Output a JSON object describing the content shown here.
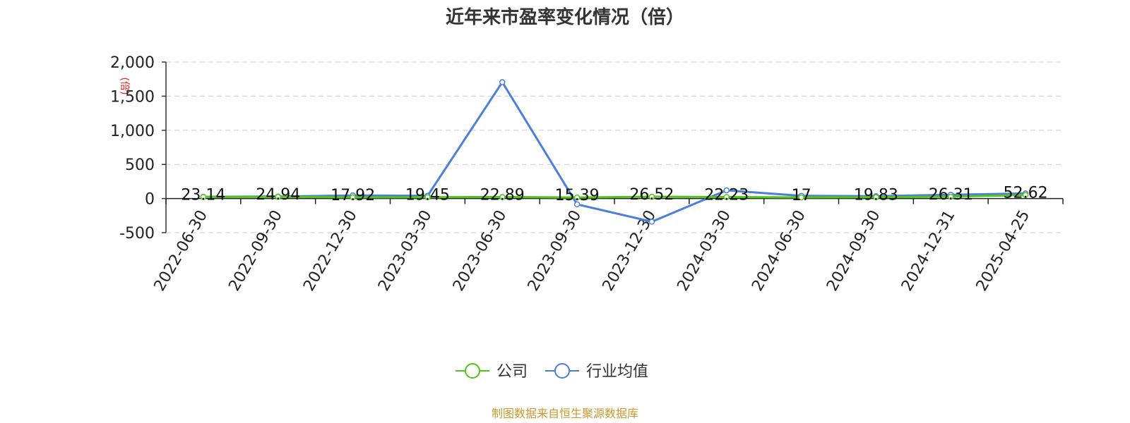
{
  "chart_data": {
    "type": "line",
    "title": "近年来市盈率变化情况（倍）",
    "ylabel": "(倍)",
    "ylim": [
      -500,
      2000
    ],
    "yticks": [
      2000,
      1500,
      1000,
      500,
      0,
      -500
    ],
    "ytick_labels": [
      "2,000",
      "1,500",
      "1,000",
      "500",
      "0",
      "-500"
    ],
    "grid": true,
    "categories": [
      "2022-06-30",
      "2022-09-30",
      "2022-12-30",
      "2023-03-30",
      "2023-06-30",
      "2023-09-30",
      "2023-12-30",
      "2024-03-30",
      "2024-06-30",
      "2024-09-30",
      "2024-12-31",
      "2025-04-25"
    ],
    "series": [
      {
        "name": "公司",
        "color": "#52c41a",
        "values": [
          23.14,
          24.94,
          17.92,
          19.45,
          22.89,
          15.39,
          26.52,
          22.23,
          17,
          19.83,
          26.31,
          52.62
        ],
        "labels": [
          "23.14",
          "24.94",
          "17.92",
          "19.45",
          "22.89",
          "15.39",
          "26.52",
          "22.23",
          "17",
          "19.83",
          "26.31",
          "52.62"
        ]
      },
      {
        "name": "行业均值",
        "color": "#4a7fdc",
        "values": [
          25,
          30,
          45,
          40,
          1705,
          -85,
          -340,
          120,
          40,
          35,
          55,
          75
        ]
      }
    ],
    "legend_position": "bottom-center"
  },
  "footer": {
    "source": "制图数据来自恒生聚源数据库"
  }
}
